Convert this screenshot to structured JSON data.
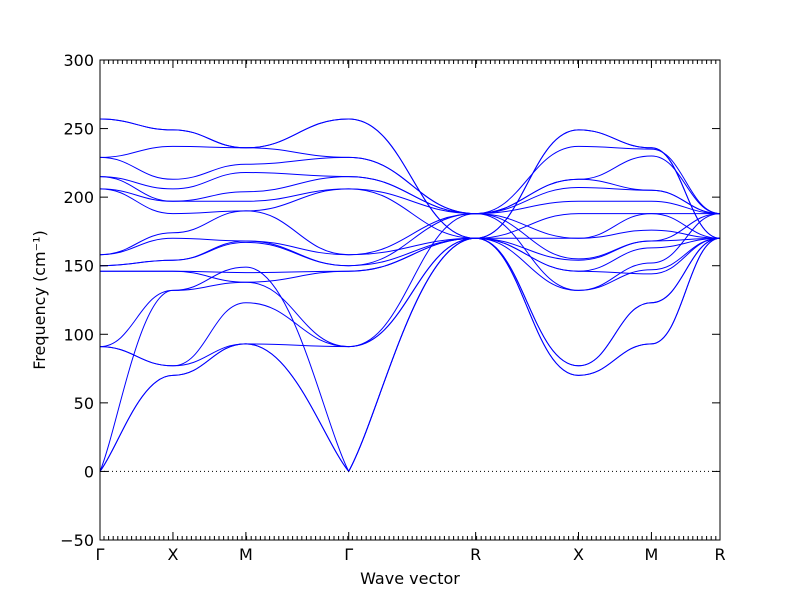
{
  "chart_data": {
    "type": "line",
    "xlabel": "Wave vector",
    "ylabel": "Frequency (cm⁻¹)",
    "ylim": [
      -50,
      300
    ],
    "yticks": [
      -50,
      0,
      50,
      100,
      150,
      200,
      250,
      300
    ],
    "xlim": [
      0,
      8.5
    ],
    "x_points": [
      {
        "label": "Γ",
        "x": 0
      },
      {
        "label": "X",
        "x": 1
      },
      {
        "label": "M",
        "x": 2
      },
      {
        "label": "Γ",
        "x": 3.41
      },
      {
        "label": "R",
        "x": 5.15
      },
      {
        "label": "X",
        "x": 6.56
      },
      {
        "label": "M",
        "x": 7.56
      },
      {
        "label": "R",
        "x": 8.5
      }
    ],
    "zero_line": true,
    "series_color": "#0000ff",
    "series": [
      {
        "values": [
          0,
          70,
          93,
          0,
          170,
          70,
          93,
          170
        ]
      },
      {
        "values": [
          0,
          70,
          93,
          0,
          170,
          70,
          93,
          170
        ]
      },
      {
        "values": [
          0,
          132,
          149,
          0,
          170,
          77,
          123,
          170
        ]
      },
      {
        "values": [
          91,
          77,
          93,
          91,
          170,
          77,
          123,
          170
        ]
      },
      {
        "values": [
          91,
          77,
          123,
          91,
          170,
          132,
          147,
          170
        ]
      },
      {
        "values": [
          91,
          132,
          138,
          91,
          188,
          132,
          152,
          188
        ]
      },
      {
        "values": [
          146,
          146,
          138,
          146,
          170,
          146,
          144,
          170
        ]
      },
      {
        "values": [
          146,
          146,
          145,
          146,
          170,
          146,
          163,
          170
        ]
      },
      {
        "values": [
          150,
          154,
          167,
          150,
          170,
          154,
          168,
          170
        ]
      },
      {
        "values": [
          150,
          154,
          168,
          150,
          188,
          155,
          168,
          188
        ]
      },
      {
        "values": [
          158,
          170,
          168,
          158,
          170,
          170,
          176,
          170
        ]
      },
      {
        "values": [
          158,
          174,
          190,
          158,
          188,
          170,
          188,
          188
        ]
      },
      {
        "values": [
          206,
          188,
          190,
          206,
          170,
          188,
          188,
          170
        ]
      },
      {
        "values": [
          206,
          197,
          197,
          206,
          188,
          197,
          197,
          188
        ]
      },
      {
        "values": [
          215,
          197,
          204,
          215,
          188,
          207,
          205,
          188
        ]
      },
      {
        "values": [
          215,
          206,
          218,
          215,
          188,
          213,
          205,
          188
        ]
      },
      {
        "values": [
          229,
          213,
          224,
          229,
          188,
          213,
          230,
          188
        ]
      },
      {
        "values": [
          229,
          237,
          236,
          229,
          188,
          237,
          235,
          188
        ]
      },
      {
        "values": [
          257,
          249,
          236,
          257,
          170,
          249,
          236,
          170
        ]
      },
      {
        "values": [
          257,
          249,
          236,
          257,
          170,
          249,
          236,
          170
        ]
      }
    ]
  }
}
